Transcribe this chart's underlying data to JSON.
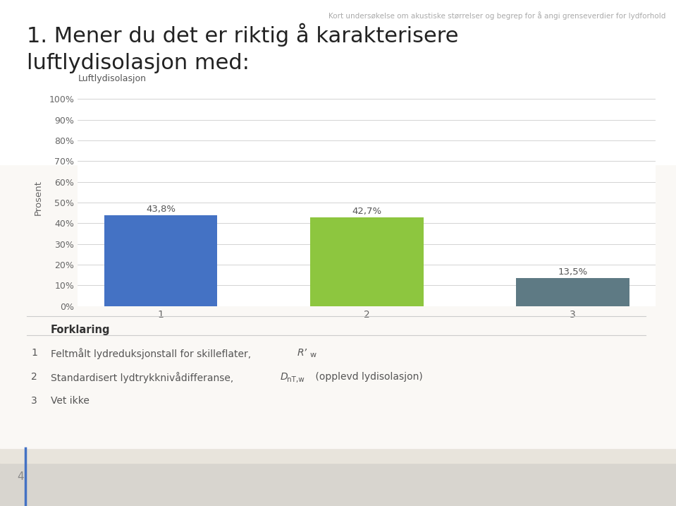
{
  "title_line1": "1. Mener du det er riktig å karakterisere",
  "title_line2": "    luftlydisolasjon med:",
  "header_text": "Kort undersøkelse om akustiske størrelser og begrep for å angi grenseverdier for lydforhold",
  "chart_title": "Luftlydisolasjon",
  "ylabel": "Prosent",
  "categories": [
    "1",
    "2",
    "3"
  ],
  "values": [
    43.8,
    42.7,
    13.5
  ],
  "bar_colors": [
    "#4472C4",
    "#8DC63F",
    "#5E7A84"
  ],
  "value_labels": [
    "43,8%",
    "42,7%",
    "13,5%"
  ],
  "yticks": [
    0,
    10,
    20,
    30,
    40,
    50,
    60,
    70,
    80,
    90,
    100
  ],
  "ytick_labels": [
    "0%",
    "10%",
    "20%",
    "30%",
    "40%",
    "50%",
    "60%",
    "70%",
    "80%",
    "90%",
    "100%"
  ],
  "ylim": [
    0,
    105
  ],
  "background_color": "#FFFFFF",
  "content_bg": "#FAF8F5",
  "grid_color": "#CCCCCC",
  "forklaring_title": "Forklaring",
  "page_number": "4",
  "bottom_bar_color": "#D8D5CF"
}
